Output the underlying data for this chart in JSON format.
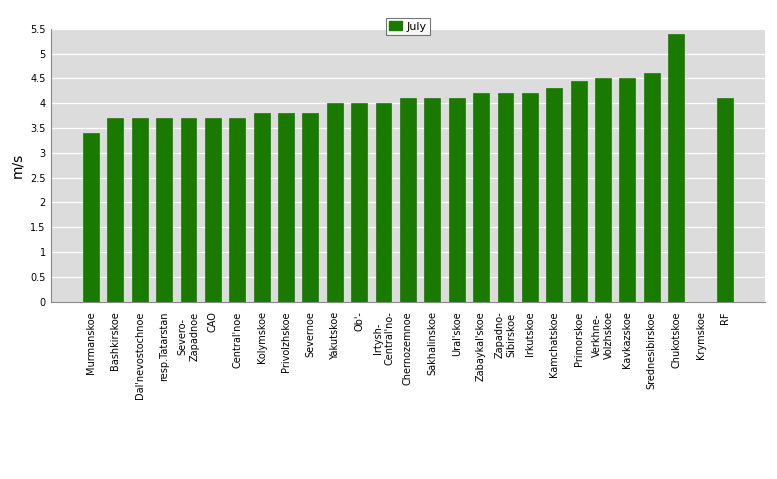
{
  "categories": [
    "Murmanskoe",
    "Bashkirskoe",
    "Dal'nevostochnoe",
    "resp.Tatarstan",
    "Severo-\nZapadnoe",
    "CAO",
    "Central'noe",
    "Kolymskoe",
    "Privolzhskoe",
    "Severnoe",
    "Yakutskoe",
    "Ob'-",
    "Irtysh-\nCentral'no-",
    "Chernozemnoe",
    "Sakhalinskoe",
    "Ural'skoe",
    "Zabaykal'skoe",
    "Zapadno-\nSibirskoe",
    "Irkutskoe",
    "Kamchatskoe",
    "Primorskoe",
    "Verkhne-\nVolzhskoe",
    "Kavkazskoe",
    "Srednesibirskoe",
    "Chukotskoe",
    "Krymskoe",
    "RF"
  ],
  "values": [
    3.4,
    3.7,
    3.7,
    3.7,
    3.7,
    3.7,
    3.7,
    3.8,
    3.8,
    3.8,
    4.0,
    4.0,
    4.0,
    4.1,
    4.1,
    4.1,
    4.2,
    4.2,
    4.2,
    4.3,
    4.45,
    4.5,
    4.5,
    4.6,
    5.4,
    0.0,
    4.1
  ],
  "bar_color": "#1a7a00",
  "ylabel": "m/s",
  "ylim": [
    0,
    5.5
  ],
  "yticks": [
    0,
    0.5,
    1.0,
    1.5,
    2.0,
    2.5,
    3.0,
    3.5,
    4.0,
    4.5,
    5.0,
    5.5
  ],
  "legend_label": "July",
  "legend_color": "#1a7a00",
  "plot_bg_color": "#dcdcdc",
  "fig_bg_color": "#ffffff",
  "tick_fontsize": 7,
  "ylabel_fontsize": 10,
  "legend_fontsize": 8,
  "bar_width": 0.65
}
